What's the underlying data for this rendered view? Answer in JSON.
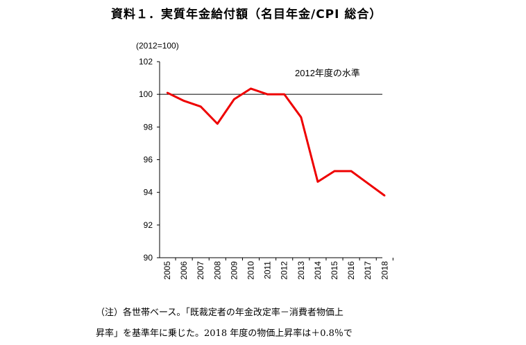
{
  "title": "資料１．実質年金給付額（名目年金/CPI 総合）",
  "note_line1": "（注）各世帯ベース。「既裁定者の年金改定率－消費者物価上",
  "note_line2": "昇率」を基準年に乗じた。2018 年度の物価上昇率は＋0.8％で",
  "chart_data": {
    "type": "line",
    "unit_label": "(2012=100)",
    "annotation": "2012年度の水準",
    "x": [
      "2005",
      "2006",
      "2007",
      "2008",
      "2009",
      "2010",
      "2011",
      "2012",
      "2013",
      "2014",
      "2015",
      "2016",
      "2017",
      "2018"
    ],
    "series": [
      {
        "values": [
          100.1,
          99.6,
          99.25,
          98.2,
          99.7,
          100.35,
          100.0,
          100.0,
          98.6,
          94.65,
          95.3,
          95.3,
          94.55,
          93.8
        ],
        "color": "#ee0000"
      }
    ],
    "reference_line": 100,
    "ylim": [
      90,
      102
    ],
    "yticks": [
      90,
      92,
      94,
      96,
      98,
      100,
      102
    ],
    "grid": false
  }
}
